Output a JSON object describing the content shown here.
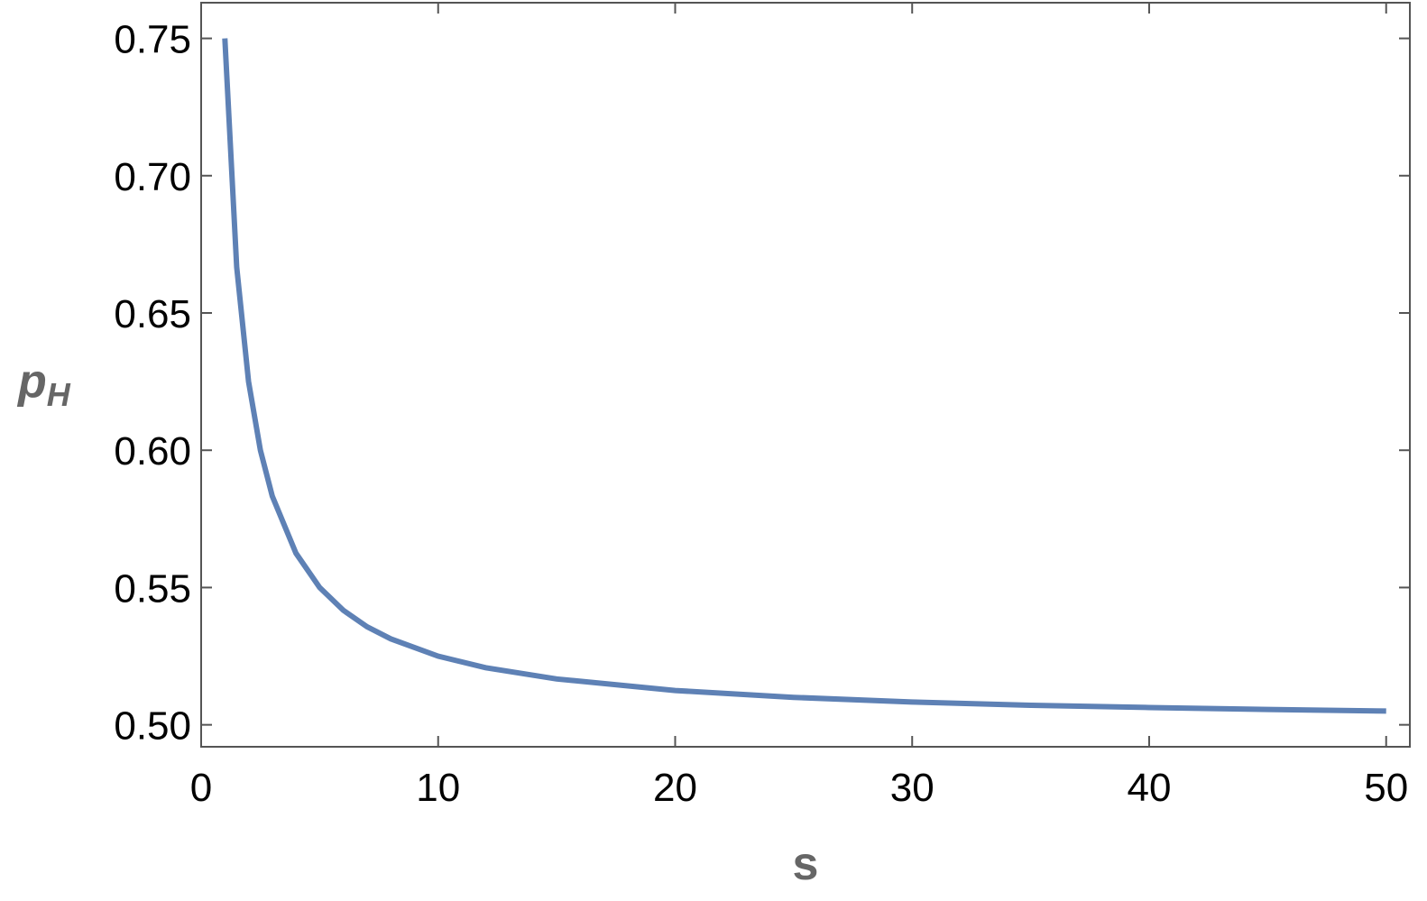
{
  "chart_data": {
    "type": "line",
    "x_label": "s",
    "y_label": "p",
    "y_label_subscript": "H",
    "x": [
      1,
      1.5,
      2,
      2.5,
      3,
      4,
      5,
      6,
      7,
      8,
      10,
      12,
      15,
      20,
      25,
      30,
      35,
      40,
      45,
      50
    ],
    "series": [
      {
        "color": "#5e81b5",
        "values": [
          0.75,
          0.6667,
          0.625,
          0.6,
          0.5833,
          0.5625,
          0.55,
          0.5417,
          0.5357,
          0.5313,
          0.525,
          0.5208,
          0.5167,
          0.5125,
          0.51,
          0.5083,
          0.5071,
          0.5063,
          0.5056,
          0.505
        ]
      }
    ],
    "xlim": [
      0,
      51
    ],
    "ylim": [
      0.492,
      0.763
    ],
    "xticks": [
      0,
      10,
      20,
      30,
      40,
      50
    ],
    "yticks": [
      {
        "value": 0.5,
        "label": "0.50"
      },
      0.55,
      {
        "value": 0.6,
        "label": "0.60"
      },
      0.65,
      {
        "value": 0.7,
        "label": "0.70"
      },
      0.75
    ]
  }
}
